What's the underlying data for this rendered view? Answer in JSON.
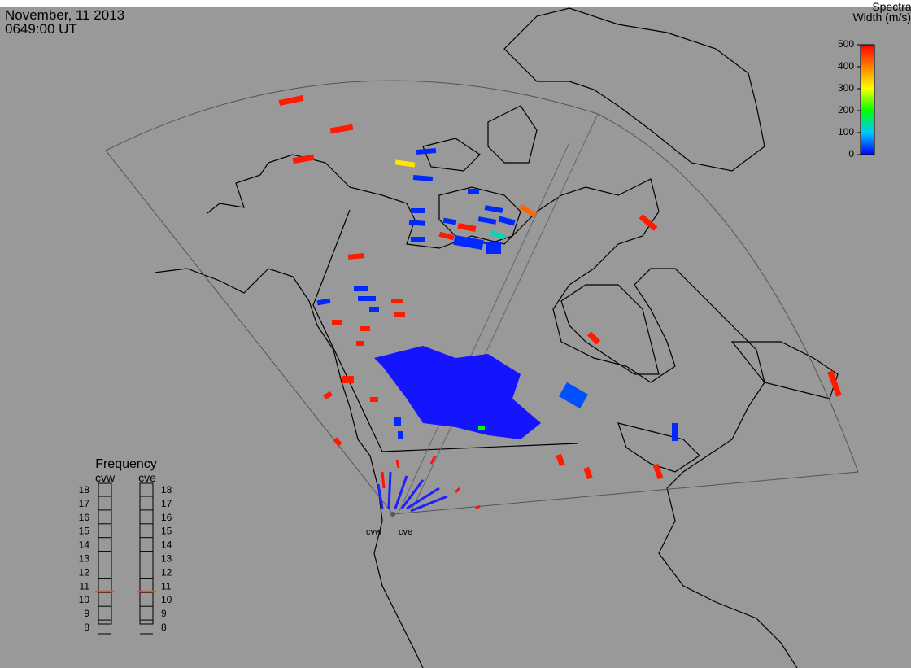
{
  "header": {
    "date": "November, 11 2013",
    "time": "0649:00 UT"
  },
  "colorbar": {
    "title": [
      "Spectral",
      "Width (m/s)"
    ],
    "range": [
      0,
      500
    ],
    "ticks": [
      0,
      100,
      200,
      300,
      400,
      500
    ],
    "colors": [
      "#0000ff",
      "#00c8ff",
      "#00ff00",
      "#ffff00",
      "#ff8000",
      "#ff0000"
    ]
  },
  "frequency": {
    "title": "Frequency",
    "range": [
      8,
      18
    ],
    "ticks": [
      8,
      9,
      10,
      11,
      12,
      13,
      14,
      15,
      16,
      17,
      18
    ],
    "marker_color": "#ff5000",
    "radars": [
      {
        "name": "cvw",
        "value": 10.6
      },
      {
        "name": "cve",
        "value": 10.6
      }
    ]
  },
  "echoes": [
    480,
    480,
    480,
    480,
    480,
    480,
    480,
    480,
    480,
    480,
    480,
    480,
    480,
    480,
    480,
    480,
    480,
    480,
    480,
    480,
    480,
    320,
    20,
    20,
    20,
    20,
    20,
    20,
    20,
    20,
    20,
    20,
    20,
    20,
    20,
    20,
    20,
    20,
    20,
    40,
    20,
    20,
    130,
    420,
    200
  ]
}
